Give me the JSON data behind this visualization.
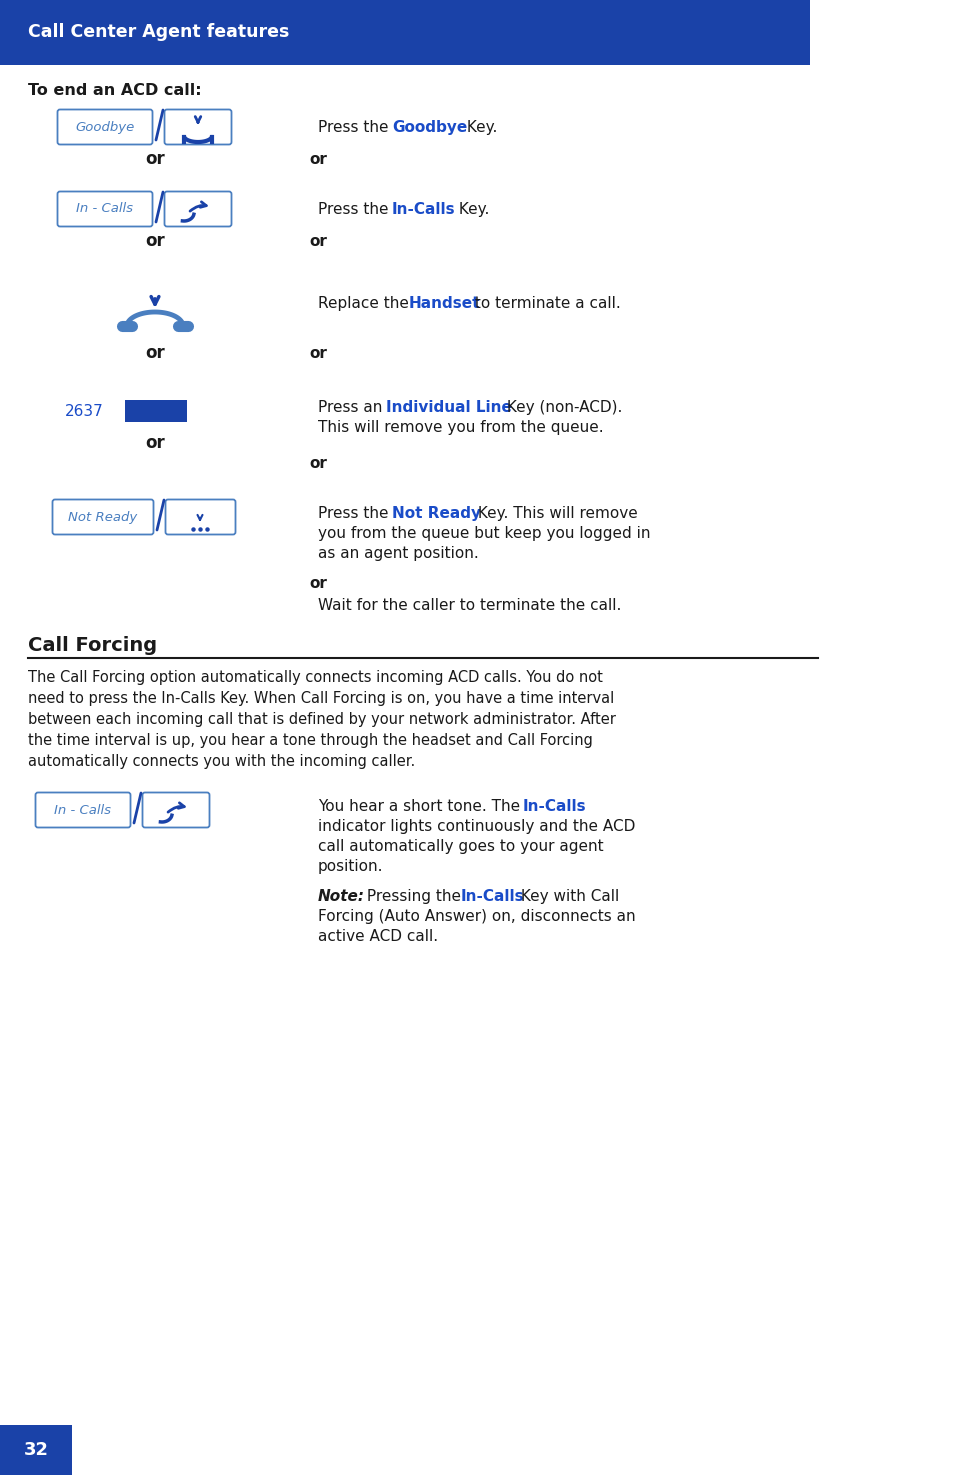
{
  "header_bg": "#1a42a8",
  "header_text": "Call Center Agent features",
  "header_text_color": "#ffffff",
  "page_bg": "#ffffff",
  "blue_accent": "#1a4cc8",
  "light_blue": "#4a7fc0",
  "dark_blue": "#1a42a8",
  "black": "#1a1a1a",
  "title1": "To end an ACD call:",
  "section_title": "Call Forcing",
  "page_number": "32",
  "footer_bg": "#1a42a8",
  "footer_text_color": "#ffffff"
}
